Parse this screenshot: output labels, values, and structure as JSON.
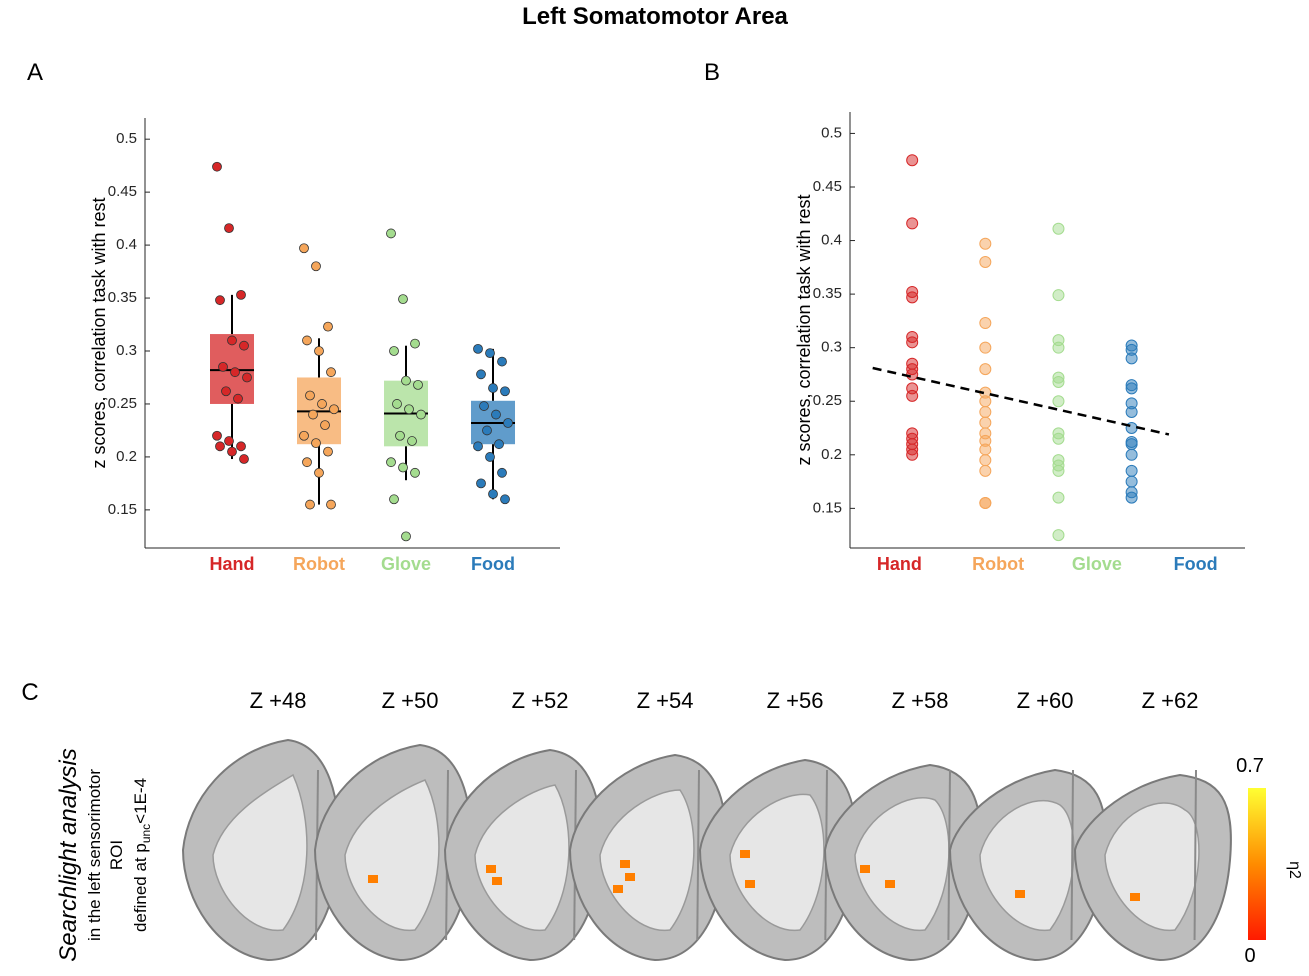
{
  "title": "Left Somatomotor Area",
  "chart_data": [
    {
      "type": "box",
      "panel": "A",
      "ylabel": "z scores, correlation task with rest",
      "categories": [
        "Hand",
        "Robot",
        "Glove",
        "Food"
      ],
      "colors": [
        "#d62728",
        "#f5a65b",
        "#a4dc8f",
        "#2b7bba"
      ],
      "xlim": [
        0,
        4.77
      ],
      "ylim": [
        0.114,
        0.52
      ],
      "yticks": [
        0.15,
        0.2,
        0.25,
        0.3,
        0.35,
        0.4,
        0.45,
        0.5
      ],
      "values": [
        [
          0.474,
          0.416,
          0.353,
          0.348,
          0.31,
          0.305,
          0.285,
          0.28,
          0.275,
          0.262,
          0.255,
          0.22,
          0.215,
          0.21,
          0.21,
          0.205,
          0.198
        ],
        [
          0.397,
          0.38,
          0.323,
          0.31,
          0.3,
          0.28,
          0.258,
          0.25,
          0.245,
          0.24,
          0.23,
          0.22,
          0.213,
          0.205,
          0.195,
          0.185,
          0.155,
          0.155
        ],
        [
          0.411,
          0.349,
          0.307,
          0.3,
          0.272,
          0.268,
          0.25,
          0.245,
          0.24,
          0.22,
          0.215,
          0.195,
          0.19,
          0.185,
          0.16,
          0.125
        ],
        [
          0.302,
          0.298,
          0.29,
          0.278,
          0.265,
          0.262,
          0.248,
          0.24,
          0.232,
          0.225,
          0.212,
          0.21,
          0.2,
          0.185,
          0.175,
          0.165,
          0.16
        ]
      ],
      "boxes": [
        {
          "q1": 0.25,
          "median": 0.282,
          "q3": 0.316,
          "whisker_low": 0.198,
          "whisker_high": 0.353
        },
        {
          "q1": 0.212,
          "median": 0.243,
          "q3": 0.275,
          "whisker_low": 0.155,
          "whisker_high": 0.312
        },
        {
          "q1": 0.21,
          "median": 0.241,
          "q3": 0.272,
          "whisker_low": 0.178,
          "whisker_high": 0.305
        },
        {
          "q1": 0.212,
          "median": 0.232,
          "q3": 0.253,
          "whisker_low": 0.16,
          "whisker_high": 0.302
        }
      ]
    },
    {
      "type": "scatter",
      "panel": "B",
      "ylabel": "z scores, correlation task with rest",
      "categories": [
        "Hand",
        "Robot",
        "Glove",
        "Food"
      ],
      "colors": [
        "#d62728",
        "#f5a65b",
        "#a4dc8f",
        "#2b7bba"
      ],
      "x": [
        1,
        2,
        3,
        4
      ],
      "xlim": [
        0.15,
        5.55
      ],
      "ylim": [
        0.113,
        0.52
      ],
      "yticks": [
        0.15,
        0.2,
        0.25,
        0.3,
        0.35,
        0.4,
        0.45,
        0.5
      ],
      "values": [
        [
          0.475,
          0.416,
          0.352,
          0.347,
          0.31,
          0.305,
          0.285,
          0.28,
          0.275,
          0.262,
          0.255,
          0.22,
          0.215,
          0.21,
          0.205,
          0.2
        ],
        [
          0.397,
          0.38,
          0.323,
          0.3,
          0.28,
          0.258,
          0.25,
          0.24,
          0.23,
          0.22,
          0.213,
          0.205,
          0.195,
          0.185,
          0.155,
          0.155
        ],
        [
          0.411,
          0.349,
          0.307,
          0.3,
          0.272,
          0.268,
          0.25,
          0.22,
          0.215,
          0.195,
          0.19,
          0.185,
          0.16,
          0.125
        ],
        [
          0.302,
          0.298,
          0.29,
          0.265,
          0.262,
          0.248,
          0.24,
          0.225,
          0.212,
          0.21,
          0.2,
          0.185,
          0.175,
          0.165,
          0.16
        ]
      ],
      "trend": {
        "x": [
          0.46,
          4.51
        ],
        "y": [
          0.281,
          0.219
        ]
      }
    }
  ],
  "panel_c": {
    "letter": "C",
    "side_text": {
      "line1": "Searchlight  analysis",
      "line2": "in the left sensorimotor",
      "line3": "ROI",
      "line4_pre": "defined at p",
      "line4_sub": "unc",
      "line4_post": "<1E-4"
    },
    "slices": [
      "Z +48",
      "Z +50",
      "Z +52",
      "Z +54",
      "Z +56",
      "Z +58",
      "Z +60",
      "Z +62"
    ],
    "colorbar": {
      "max": 0.7,
      "min": 0,
      "label": "η2"
    }
  }
}
